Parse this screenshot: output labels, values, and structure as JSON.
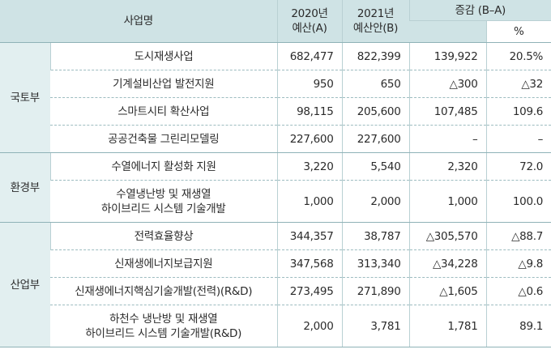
{
  "header": {
    "project_name": "사업명",
    "budget_2020": [
      "2020년",
      "예산(A)"
    ],
    "budget_2021": [
      "2021년",
      "예산안(B)"
    ],
    "diff": "증감 (B–A)",
    "pct": "%"
  },
  "groups": [
    {
      "ministry": "국토부",
      "rows": [
        {
          "name": [
            "도시재생사업"
          ],
          "a": "682,477",
          "b": "822,399",
          "diff": "139,922",
          "pct": "20.5%"
        },
        {
          "name": [
            "기계설비산업 발전지원"
          ],
          "a": "950",
          "b": "650",
          "diff": "△300",
          "pct": "△32"
        },
        {
          "name": [
            "스마트시티 확산사업"
          ],
          "a": "98,115",
          "b": "205,600",
          "diff": "107,485",
          "pct": "109.6"
        },
        {
          "name": [
            "공공건축물 그린리모델링"
          ],
          "a": "227,600",
          "b": "227,600",
          "diff": "–",
          "pct": "–"
        }
      ]
    },
    {
      "ministry": "환경부",
      "rows": [
        {
          "name": [
            "수열에너지 활성화 지원"
          ],
          "a": "3,220",
          "b": "5,540",
          "diff": "2,320",
          "pct": "72.0"
        },
        {
          "name": [
            "수열냉난방 및 재생열",
            "하이브리드 시스템 기술개발"
          ],
          "a": "1,000",
          "b": "2,000",
          "diff": "1,000",
          "pct": "100.0"
        }
      ]
    },
    {
      "ministry": "산업부",
      "rows": [
        {
          "name": [
            "전력효율향상"
          ],
          "a": "344,357",
          "b": "38,787",
          "diff": "△305,570",
          "pct": "△88.7"
        },
        {
          "name": [
            "신재생에너지보급지원"
          ],
          "a": "347,568",
          "b": "313,340",
          "diff": "△34,228",
          "pct": "△9.8"
        },
        {
          "name": [
            "신재생에너지핵심기술개발(전력)(R&D)"
          ],
          "a": "273,495",
          "b": "271,890",
          "diff": "△1,605",
          "pct": "△0.6"
        },
        {
          "name": [
            "하천수 냉난방 및 재생열",
            "하이브리드 시스템 기술개발(R&D)"
          ],
          "a": "2,000",
          "b": "3,781",
          "diff": "1,781",
          "pct": "89.1"
        }
      ]
    }
  ]
}
